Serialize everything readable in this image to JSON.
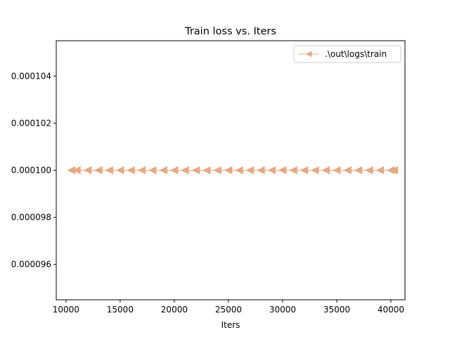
{
  "chart_data": {
    "type": "line",
    "title": "Train loss  vs. Iters",
    "xlabel": "Iters",
    "ylabel": "",
    "xlim": [
      9100,
      41300
    ],
    "ylim": [
      9.45e-05,
      0.0001055
    ],
    "x_ticks": [
      10000,
      15000,
      20000,
      25000,
      30000,
      35000,
      40000
    ],
    "x_tick_labels": [
      "10000",
      "15000",
      "20000",
      "25000",
      "30000",
      "35000",
      "40000"
    ],
    "y_ticks": [
      9.6e-05,
      9.8e-05,
      0.0001,
      0.000102,
      0.000104
    ],
    "y_tick_labels": [
      "0.000096",
      "0.000098",
      "0.000100",
      "0.000102",
      "0.000104"
    ],
    "grid": false,
    "legend": {
      "position": "top-right",
      "entries": [
        ".\\out\\logs\\train"
      ]
    },
    "series": [
      {
        "name": ".\\out\\logs\\train",
        "color": "#e8a882",
        "marker": "triangle-left",
        "x": [
          10500,
          11000,
          12000,
          13000,
          14000,
          15000,
          16000,
          17000,
          18000,
          19000,
          20000,
          21000,
          22000,
          23000,
          24000,
          25000,
          26000,
          27000,
          28000,
          29000,
          30000,
          31000,
          32000,
          33000,
          34000,
          35000,
          36000,
          37000,
          38000,
          39000,
          40000,
          40300
        ],
        "values": [
          0.0001,
          0.0001,
          0.0001,
          0.0001,
          0.0001,
          0.0001,
          0.0001,
          0.0001,
          0.0001,
          0.0001,
          0.0001,
          0.0001,
          0.0001,
          0.0001,
          0.0001,
          0.0001,
          0.0001,
          0.0001,
          0.0001,
          0.0001,
          0.0001,
          0.0001,
          0.0001,
          0.0001,
          0.0001,
          0.0001,
          0.0001,
          0.0001,
          0.0001,
          0.0001,
          0.0001,
          0.0001
        ]
      }
    ]
  }
}
